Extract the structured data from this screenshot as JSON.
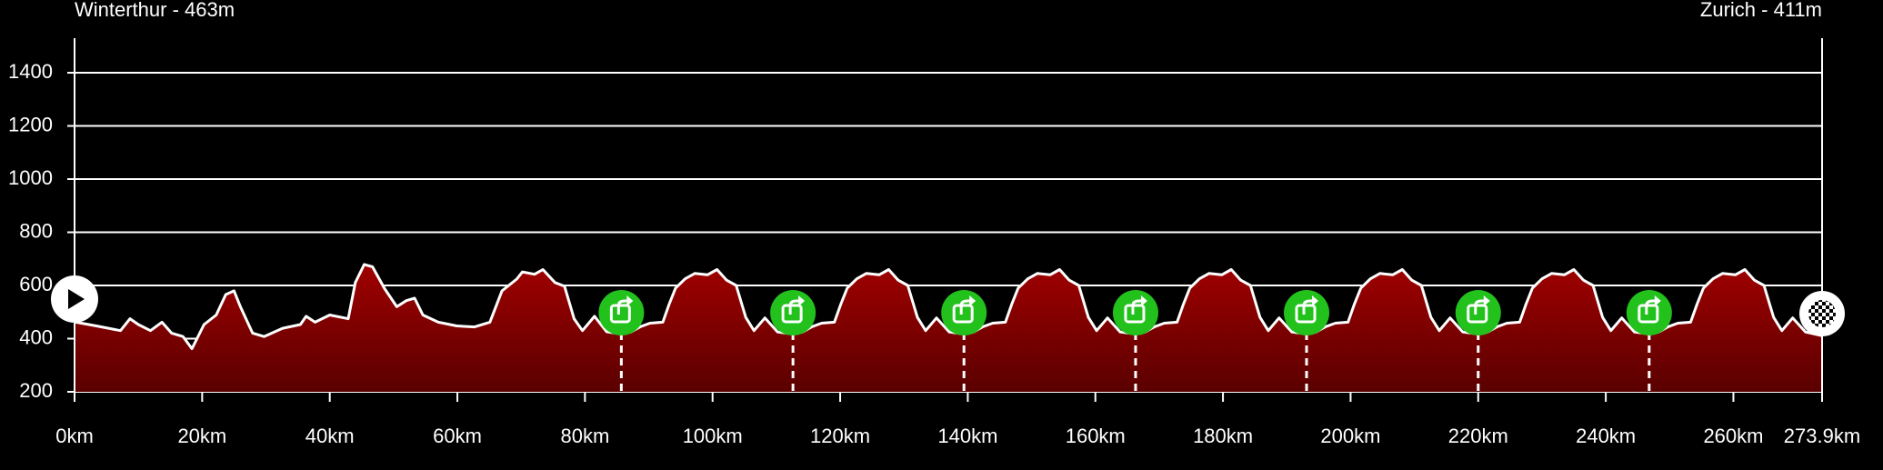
{
  "chart_data": {
    "type": "area",
    "start_label": "Winterthur - 463m",
    "end_label": "Zurich - 411m",
    "color": "#8b0000",
    "line_color": "#ffffff",
    "lap_color": "#22c11c",
    "grid": true,
    "xlim": [
      0,
      273.9
    ],
    "ylim": [
      200,
      1530
    ],
    "yticks": [
      200,
      400,
      600,
      800,
      1000,
      1200,
      1400
    ],
    "xticks": [
      {
        "value": 0,
        "label": "0km"
      },
      {
        "value": 20,
        "label": "20km"
      },
      {
        "value": 40,
        "label": "40km"
      },
      {
        "value": 60,
        "label": "60km"
      },
      {
        "value": 80,
        "label": "80km"
      },
      {
        "value": 100,
        "label": "100km"
      },
      {
        "value": 120,
        "label": "120km"
      },
      {
        "value": 140,
        "label": "140km"
      },
      {
        "value": 160,
        "label": "160km"
      },
      {
        "value": 180,
        "label": "180km"
      },
      {
        "value": 200,
        "label": "200km"
      },
      {
        "value": 220,
        "label": "220km"
      },
      {
        "value": 240,
        "label": "240km"
      },
      {
        "value": 260,
        "label": "260km"
      },
      {
        "value": 273.9,
        "label": "273.9km"
      }
    ],
    "lap_markers": [
      85.7,
      112.6,
      139.4,
      166.3,
      193.1,
      220.0,
      246.8
    ],
    "x": [
      0,
      3.4,
      7.2,
      8.7,
      10,
      11.9,
      13.7,
      15.2,
      17,
      18.4,
      20.3,
      22.2,
      23.7,
      25,
      26,
      27.9,
      29.7,
      32.6,
      35.4,
      36.3,
      37.7,
      40,
      42.9,
      44,
      45.4,
      46.7,
      48.6,
      50.5,
      52,
      53.3,
      54.6,
      57,
      59.9,
      62.7,
      65.1,
      67,
      69.3,
      70.2,
      72.1,
      73.4,
      75.3,
      76.8,
      78.3,
      79.6,
      81.5,
      83.4,
      85.7,
      87.2,
      88.7,
      90.2,
      92.2,
      93.2,
      94.2,
      95.7,
      97.2,
      99.2,
      100.7,
      102.2,
      103.7,
      105.2,
      106.5,
      108.2,
      110.2,
      112.6,
      114.1,
      115.6,
      117.1,
      119.1,
      120.1,
      121.1,
      122.6,
      124.1,
      126.1,
      127.6,
      129.1,
      130.6,
      132.1,
      133.4,
      135.1,
      137.1,
      139.4,
      140.9,
      142.4,
      143.9,
      145.9,
      146.9,
      147.9,
      149.4,
      150.9,
      152.9,
      154.4,
      155.9,
      157.4,
      158.9,
      160.2,
      161.9,
      163.9,
      166.3,
      167.8,
      169.3,
      170.8,
      172.8,
      173.8,
      174.8,
      176.3,
      177.8,
      179.8,
      181.3,
      182.8,
      184.3,
      185.8,
      187.1,
      188.8,
      190.8,
      193.1,
      194.6,
      196.1,
      197.6,
      199.6,
      200.6,
      201.6,
      203.1,
      204.6,
      206.6,
      208.1,
      209.6,
      211.1,
      212.6,
      213.9,
      215.6,
      217.6,
      220.0,
      221.5,
      223.0,
      224.5,
      226.5,
      227.5,
      228.5,
      230.0,
      231.5,
      233.5,
      235.0,
      236.5,
      238.0,
      239.5,
      240.8,
      242.5,
      244.5,
      246.8,
      248.3,
      249.8,
      251.3,
      253.3,
      254.3,
      255.3,
      256.8,
      258.3,
      260.3,
      261.8,
      263.3,
      264.8,
      266.3,
      267.6,
      269.3,
      271.3,
      273.9
    ],
    "values": [
      463,
      448,
      430,
      475,
      453,
      430,
      462,
      421,
      408,
      362,
      453,
      489,
      566,
      580,
      520,
      421,
      408,
      439,
      453,
      484,
      462,
      489,
      475,
      611,
      679,
      670,
      588,
      520,
      543,
      552,
      489,
      462,
      448,
      444,
      462,
      580,
      624,
      651,
      642,
      660,
      611,
      597,
      475,
      430,
      484,
      426,
      417,
      425,
      445,
      458,
      462,
      530,
      590,
      625,
      645,
      640,
      660,
      620,
      600,
      480,
      430,
      478,
      425,
      417,
      425,
      445,
      458,
      462,
      530,
      590,
      625,
      645,
      640,
      660,
      620,
      600,
      480,
      430,
      478,
      425,
      417,
      425,
      445,
      458,
      462,
      530,
      590,
      625,
      645,
      640,
      660,
      620,
      600,
      480,
      430,
      478,
      425,
      417,
      425,
      445,
      458,
      462,
      530,
      590,
      625,
      645,
      640,
      660,
      620,
      600,
      480,
      430,
      478,
      425,
      417,
      425,
      445,
      458,
      462,
      530,
      590,
      625,
      645,
      640,
      660,
      620,
      600,
      480,
      430,
      478,
      425,
      417,
      425,
      445,
      458,
      462,
      530,
      590,
      625,
      645,
      640,
      660,
      620,
      600,
      480,
      430,
      478,
      425,
      417,
      425,
      445,
      458,
      462,
      530,
      590,
      625,
      645,
      640,
      660,
      620,
      600,
      480,
      430,
      478,
      425,
      411
    ]
  }
}
